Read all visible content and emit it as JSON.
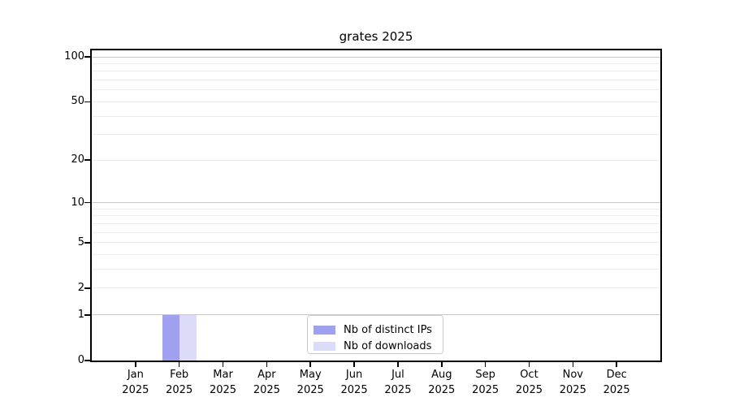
{
  "chart_data": {
    "type": "bar",
    "title": "grates 2025",
    "categories": [
      {
        "month": "Jan",
        "year": "2025"
      },
      {
        "month": "Feb",
        "year": "2025"
      },
      {
        "month": "Mar",
        "year": "2025"
      },
      {
        "month": "Apr",
        "year": "2025"
      },
      {
        "month": "May",
        "year": "2025"
      },
      {
        "month": "Jun",
        "year": "2025"
      },
      {
        "month": "Jul",
        "year": "2025"
      },
      {
        "month": "Aug",
        "year": "2025"
      },
      {
        "month": "Sep",
        "year": "2025"
      },
      {
        "month": "Oct",
        "year": "2025"
      },
      {
        "month": "Nov",
        "year": "2025"
      },
      {
        "month": "Dec",
        "year": "2025"
      }
    ],
    "series": [
      {
        "name": "Nb of distinct IPs",
        "color": "#a0a0f0",
        "values": [
          0,
          1,
          0,
          0,
          0,
          0,
          0,
          0,
          0,
          0,
          0,
          0
        ]
      },
      {
        "name": "Nb of downloads",
        "color": "#dcdcf8",
        "values": [
          0,
          1,
          0,
          0,
          0,
          0,
          0,
          0,
          0,
          0,
          0,
          0
        ]
      }
    ],
    "y_axis": {
      "scale": "log1p",
      "tick_values": [
        0,
        1,
        2,
        5,
        10,
        20,
        50,
        100
      ],
      "tick_labels": [
        "0",
        "1",
        "2",
        "5",
        "10",
        "20",
        "50",
        "100"
      ],
      "major_gridlines": [
        1,
        10,
        100
      ],
      "minor_gridlines": [
        2,
        3,
        4,
        5,
        6,
        7,
        8,
        9,
        20,
        30,
        40,
        50,
        60,
        70,
        80,
        90
      ],
      "range": [
        0,
        110
      ]
    },
    "x_axis": {
      "label_year_on_second_line": true
    },
    "legend": {
      "position": "lower center",
      "entries": [
        "Nb of distinct IPs",
        "Nb of downloads"
      ]
    },
    "grid": true,
    "colors": {
      "major_grid": "#c9c9c9",
      "minor_grid": "#ededed",
      "axis": "#000000",
      "background": "#ffffff"
    }
  }
}
